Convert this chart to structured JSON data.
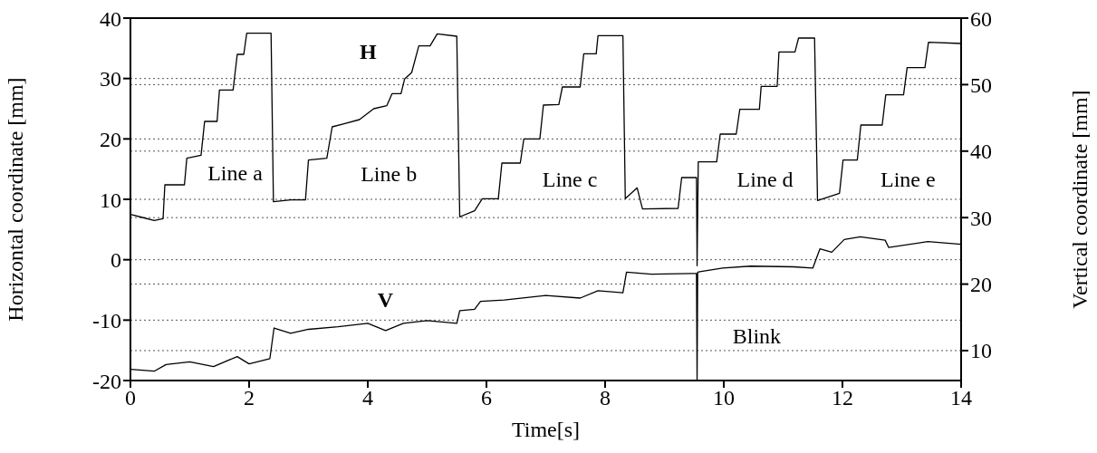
{
  "chart_data": {
    "type": "line",
    "xlabel": "Time[s]",
    "ylabel": "Horizontal coordinate [mm]",
    "y2label": "Vertical coordinate [mm]",
    "xlim": [
      0,
      14
    ],
    "xticks": [
      0,
      2,
      4,
      6,
      8,
      10,
      12,
      14
    ],
    "ylim": [
      -20,
      40
    ],
    "yticks": [
      -20,
      -10,
      0,
      10,
      20,
      30,
      40
    ],
    "y2lim": [
      5.5,
      60
    ],
    "y2ticks": [
      10,
      20,
      30,
      40,
      50,
      60
    ],
    "grid": true,
    "marker": "none",
    "line_style": "solid",
    "series": [
      {
        "color": "#000000",
        "x": [
          0,
          0.2,
          0.4,
          0.55,
          0.58,
          0.91,
          0.95,
          1.19,
          1.25,
          1.46,
          1.5,
          1.73,
          1.8,
          1.91,
          1.96,
          2.37,
          2.41,
          2.7,
          2.95,
          3.0,
          3.31,
          3.4,
          3.6,
          3.86,
          4.1,
          4.32,
          4.41,
          4.56,
          4.62,
          4.74,
          4.86,
          5.05,
          5.17,
          5.5,
          5.55,
          5.8,
          5.93,
          6.2,
          6.26,
          6.57,
          6.63,
          6.9,
          6.96,
          7.22,
          7.28,
          7.58,
          7.64,
          7.85,
          7.88,
          8.3,
          8.34,
          8.54,
          8.63,
          9.23,
          9.29,
          9.5,
          9.54,
          9.55,
          9.57,
          9.88,
          9.94,
          10.21,
          10.27,
          10.6,
          10.63,
          10.9,
          10.93,
          11.2,
          11.26,
          11.53,
          11.58,
          11.95,
          12.01,
          12.25,
          12.31,
          12.67,
          12.73,
          13.03,
          13.09,
          13.39,
          13.45,
          14
        ],
        "values": [
          7.5,
          7.0,
          6.5,
          6.8,
          12.4,
          12.4,
          16.8,
          17.3,
          22.9,
          22.9,
          28.1,
          28.1,
          34,
          34,
          37.5,
          37.5,
          9.6,
          9.9,
          9.9,
          16.5,
          16.8,
          22,
          22.5,
          23.2,
          25,
          25.5,
          27.5,
          27.5,
          29.9,
          31,
          35.4,
          35.4,
          37.4,
          37,
          7.1,
          8.1,
          10.1,
          10.1,
          16,
          16,
          20,
          20,
          25.6,
          25.7,
          28.6,
          28.6,
          34.1,
          34.1,
          37.1,
          37.1,
          10.1,
          11.9,
          8.4,
          8.5,
          13.6,
          13.6,
          13.6,
          -1,
          16.2,
          16.2,
          20.8,
          20.8,
          24.9,
          24.9,
          28.7,
          28.7,
          34.4,
          34.4,
          36.7,
          36.7,
          9.8,
          11,
          16.5,
          16.5,
          22.3,
          22.3,
          27.3,
          27.3,
          31.8,
          31.8,
          36,
          35.8
        ]
      },
      {
        "color": "#000000",
        "axis": "y2",
        "x": [
          0,
          0.4,
          0.6,
          1.0,
          1.4,
          1.8,
          2.0,
          2.35,
          2.42,
          2.7,
          3.0,
          3.5,
          4.0,
          4.3,
          4.6,
          5.0,
          5.5,
          5.55,
          5.8,
          5.9,
          6.3,
          7.0,
          7.58,
          7.88,
          8.3,
          8.36,
          8.78,
          9.5,
          9.54,
          9.55,
          9.56,
          9.62,
          9.98,
          10.45,
          11.17,
          11.5,
          11.62,
          11.82,
          12.03,
          12.3,
          12.72,
          12.78,
          13.44,
          14
        ],
        "values": [
          7.2,
          6.9,
          7.9,
          8.3,
          7.6,
          9.1,
          8.0,
          8.8,
          13.4,
          12.6,
          13.2,
          13.6,
          14.1,
          13.0,
          14.1,
          14.5,
          14.1,
          16,
          16.2,
          17.4,
          17.6,
          18.3,
          17.9,
          19.0,
          18.7,
          21.8,
          21.5,
          21.6,
          21.6,
          5.5,
          21.8,
          21.9,
          22.4,
          22.7,
          22.6,
          22.4,
          25.3,
          24.8,
          26.7,
          27.1,
          26.6,
          25.5,
          26.4,
          26.0
        ]
      }
    ],
    "annotations": [
      "H",
      "V",
      "Line a",
      "Line b",
      "Line c",
      "Line d",
      "Line e",
      "Blink"
    ]
  }
}
